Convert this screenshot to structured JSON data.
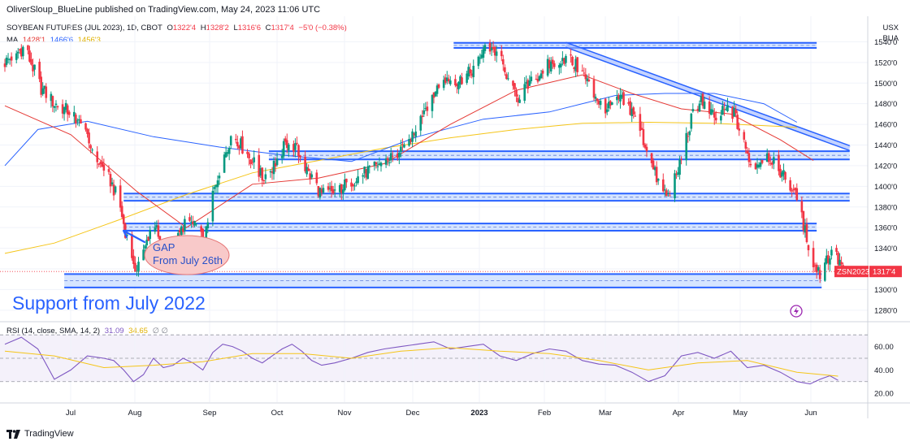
{
  "publisher": {
    "text": "OliverSloup_BlueLine published on TradingView.com, May 24, 2023 11:06 UTC"
  },
  "legend": {
    "symbol": "SOYBEAN FUTURES (JUL 2023), 1D, CBOT",
    "open_label": "O",
    "open": "1322'4",
    "high_label": "H",
    "high": "1328'2",
    "low_label": "L",
    "low": "1316'6",
    "close_label": "C",
    "close": "1317'4",
    "change": "−5'0 (−0.38%)",
    "ma_label": "MA",
    "ma_values": [
      {
        "value": "1428'1",
        "color": "#e53935"
      },
      {
        "value": "1466'6",
        "color": "#2962ff"
      },
      {
        "value": "1456'3",
        "color": "#f5c518"
      }
    ],
    "rsi_label": "RSI (14, close, SMA, 14, 2)",
    "rsi_value": "31.09",
    "rsi_ma_value": "34.65",
    "rsi_extra": "∅ ∅"
  },
  "currency": {
    "unit": "USX",
    "exchange": "BUA"
  },
  "price_tag": {
    "ticker": "ZSN2023",
    "price": "1317'4"
  },
  "annotations": {
    "gap_line1": "GAP",
    "gap_line2": "From July 26th",
    "support": "Support from July 2022"
  },
  "brand": {
    "name": "TradingView"
  },
  "colors": {
    "up": "#089981",
    "down": "#f23645",
    "ma_fast": "#e53935",
    "ma_slow": "#2962ff",
    "ma_long": "#f5c518",
    "rsi": "#7e57c2",
    "zone": "#2962ff"
  },
  "chart_data": [
    {
      "type": "candlestick",
      "title": "SOYBEAN FUTURES (JUL 2023), 1D, CBOT",
      "x_ticks": [
        "Jul",
        "Aug",
        "Sep",
        "Oct",
        "Nov",
        "Dec",
        "2023",
        "Feb",
        "Mar",
        "Apr",
        "May",
        "Jun"
      ],
      "y_ticks": [
        "1540'0",
        "1520'0",
        "1500'0",
        "1480'0",
        "1460'0",
        "1440'0",
        "1420'0",
        "1400'0",
        "1380'0",
        "1360'0",
        "1340'0",
        "1320'0",
        "1300'0",
        "1280'0"
      ],
      "ylim": [
        1272,
        1560
      ],
      "grid": true,
      "price_path": [
        [
          0,
          1520
        ],
        [
          12,
          1535
        ],
        [
          22,
          1495
        ],
        [
          30,
          1480
        ],
        [
          42,
          1470
        ],
        [
          50,
          1445
        ],
        [
          58,
          1420
        ],
        [
          64,
          1405
        ],
        [
          69,
          1385
        ],
        [
          74,
          1350
        ],
        [
          78,
          1318
        ],
        [
          84,
          1335
        ],
        [
          90,
          1370
        ],
        [
          97,
          1322
        ],
        [
          104,
          1345
        ],
        [
          110,
          1370
        ],
        [
          116,
          1358
        ],
        [
          121,
          1345
        ],
        [
          126,
          1392
        ],
        [
          132,
          1428
        ],
        [
          138,
          1452
        ],
        [
          143,
          1440
        ],
        [
          150,
          1425
        ],
        [
          156,
          1408
        ],
        [
          162,
          1418
        ],
        [
          167,
          1432
        ],
        [
          172,
          1445
        ],
        [
          177,
          1435
        ],
        [
          182,
          1418
        ],
        [
          187,
          1405
        ],
        [
          192,
          1392
        ],
        [
          200,
          1395
        ],
        [
          210,
          1405
        ],
        [
          220,
          1415
        ],
        [
          230,
          1425
        ],
        [
          240,
          1432
        ],
        [
          247,
          1450
        ],
        [
          251,
          1465
        ],
        [
          256,
          1480
        ],
        [
          262,
          1495
        ],
        [
          268,
          1505
        ],
        [
          274,
          1500
        ],
        [
          282,
          1510
        ],
        [
          289,
          1530
        ],
        [
          295,
          1535
        ],
        [
          301,
          1520
        ],
        [
          305,
          1500
        ],
        [
          310,
          1485
        ],
        [
          316,
          1495
        ],
        [
          322,
          1505
        ],
        [
          327,
          1515
        ],
        [
          333,
          1520
        ],
        [
          338,
          1525
        ],
        [
          344,
          1520
        ],
        [
          350,
          1510
        ],
        [
          355,
          1495
        ],
        [
          361,
          1480
        ],
        [
          366,
          1475
        ],
        [
          371,
          1485
        ],
        [
          376,
          1480
        ],
        [
          382,
          1470
        ],
        [
          387,
          1445
        ],
        [
          392,
          1420
        ],
        [
          397,
          1400
        ],
        [
          402,
          1390
        ],
        [
          407,
          1410
        ],
        [
          412,
          1440
        ],
        [
          417,
          1470
        ],
        [
          422,
          1485
        ],
        [
          426,
          1475
        ],
        [
          430,
          1465
        ],
        [
          434,
          1470
        ],
        [
          438,
          1475
        ],
        [
          442,
          1470
        ],
        [
          446,
          1450
        ],
        [
          450,
          1430
        ],
        [
          454,
          1420
        ],
        [
          458,
          1425
        ],
        [
          462,
          1430
        ],
        [
          466,
          1425
        ],
        [
          470,
          1415
        ],
        [
          474,
          1405
        ],
        [
          478,
          1395
        ],
        [
          482,
          1375
        ],
        [
          486,
          1350
        ],
        [
          490,
          1325
        ],
        [
          494,
          1315
        ],
        [
          498,
          1330
        ],
        [
          502,
          1335
        ],
        [
          506,
          1326
        ],
        [
          509,
          1317.5
        ]
      ],
      "ma_fast_path": [
        [
          0,
          1478
        ],
        [
          40,
          1450
        ],
        [
          80,
          1395
        ],
        [
          110,
          1360
        ],
        [
          150,
          1402
        ],
        [
          190,
          1408
        ],
        [
          230,
          1422
        ],
        [
          270,
          1460
        ],
        [
          310,
          1493
        ],
        [
          350,
          1508
        ],
        [
          380,
          1490
        ],
        [
          410,
          1475
        ],
        [
          440,
          1470
        ],
        [
          470,
          1445
        ],
        [
          490,
          1425
        ]
      ],
      "ma_slow_path": [
        [
          0,
          1420
        ],
        [
          20,
          1455
        ],
        [
          50,
          1463
        ],
        [
          90,
          1448
        ],
        [
          130,
          1438
        ],
        [
          170,
          1430
        ],
        [
          210,
          1424
        ],
        [
          250,
          1448
        ],
        [
          290,
          1465
        ],
        [
          330,
          1472
        ],
        [
          370,
          1488
        ],
        [
          400,
          1490
        ],
        [
          430,
          1490
        ],
        [
          460,
          1480
        ],
        [
          480,
          1462
        ]
      ],
      "ma_long_path": [
        [
          0,
          1335
        ],
        [
          30,
          1345
        ],
        [
          70,
          1368
        ],
        [
          110,
          1392
        ],
        [
          150,
          1413
        ],
        [
          190,
          1425
        ],
        [
          230,
          1437
        ],
        [
          270,
          1447
        ],
        [
          310,
          1455
        ],
        [
          350,
          1461
        ],
        [
          390,
          1462
        ],
        [
          430,
          1461
        ],
        [
          470,
          1458
        ],
        [
          480,
          1457
        ]
      ],
      "zones": [
        {
          "start": 272,
          "end": 492,
          "low": 1534,
          "high": 1539
        },
        {
          "start": 160,
          "end": 512,
          "low": 1426,
          "high": 1434
        },
        {
          "start": 72,
          "end": 512,
          "low": 1386,
          "high": 1393
        },
        {
          "start": 72,
          "end": 492,
          "low": 1357,
          "high": 1364
        },
        {
          "start": 36,
          "end": 495,
          "low": 1302,
          "high": 1315
        }
      ],
      "trendline": [
        [
          340,
          1537
        ],
        [
          512,
          1437
        ]
      ],
      "last_price": 1317.5
    },
    {
      "type": "line",
      "title": "RSI (14, close, SMA, 14, 2)",
      "y_ticks": [
        "60.00",
        "40.00",
        "20.00"
      ],
      "ylim": [
        18,
        75
      ],
      "bands": [
        70,
        50,
        30
      ],
      "grid": true,
      "rsi_path": [
        [
          0,
          62
        ],
        [
          10,
          68
        ],
        [
          20,
          58
        ],
        [
          30,
          32
        ],
        [
          40,
          40
        ],
        [
          50,
          52
        ],
        [
          60,
          50
        ],
        [
          66,
          48
        ],
        [
          72,
          40
        ],
        [
          78,
          30
        ],
        [
          84,
          36
        ],
        [
          90,
          50
        ],
        [
          96,
          42
        ],
        [
          102,
          44
        ],
        [
          108,
          50
        ],
        [
          114,
          46
        ],
        [
          120,
          40
        ],
        [
          126,
          55
        ],
        [
          132,
          62
        ],
        [
          138,
          60
        ],
        [
          144,
          56
        ],
        [
          150,
          50
        ],
        [
          156,
          46
        ],
        [
          162,
          52
        ],
        [
          168,
          58
        ],
        [
          174,
          62
        ],
        [
          180,
          56
        ],
        [
          186,
          48
        ],
        [
          192,
          44
        ],
        [
          200,
          46
        ],
        [
          210,
          50
        ],
        [
          220,
          55
        ],
        [
          230,
          58
        ],
        [
          240,
          60
        ],
        [
          250,
          62
        ],
        [
          260,
          64
        ],
        [
          270,
          58
        ],
        [
          280,
          60
        ],
        [
          290,
          62
        ],
        [
          300,
          52
        ],
        [
          310,
          48
        ],
        [
          320,
          54
        ],
        [
          330,
          58
        ],
        [
          340,
          56
        ],
        [
          350,
          48
        ],
        [
          360,
          45
        ],
        [
          370,
          44
        ],
        [
          380,
          38
        ],
        [
          390,
          30
        ],
        [
          400,
          35
        ],
        [
          410,
          52
        ],
        [
          420,
          55
        ],
        [
          430,
          50
        ],
        [
          440,
          56
        ],
        [
          450,
          42
        ],
        [
          460,
          44
        ],
        [
          470,
          38
        ],
        [
          480,
          30
        ],
        [
          488,
          28
        ],
        [
          494,
          32
        ],
        [
          500,
          35
        ],
        [
          505,
          31.09
        ]
      ],
      "rsi_ma_path": [
        [
          0,
          56
        ],
        [
          30,
          52
        ],
        [
          60,
          42
        ],
        [
          90,
          44
        ],
        [
          120,
          47
        ],
        [
          150,
          54
        ],
        [
          180,
          54
        ],
        [
          210,
          50
        ],
        [
          240,
          56
        ],
        [
          270,
          59
        ],
        [
          300,
          56
        ],
        [
          330,
          54
        ],
        [
          360,
          48
        ],
        [
          390,
          40
        ],
        [
          420,
          46
        ],
        [
          450,
          48
        ],
        [
          480,
          38
        ],
        [
          505,
          34.65
        ]
      ]
    }
  ]
}
